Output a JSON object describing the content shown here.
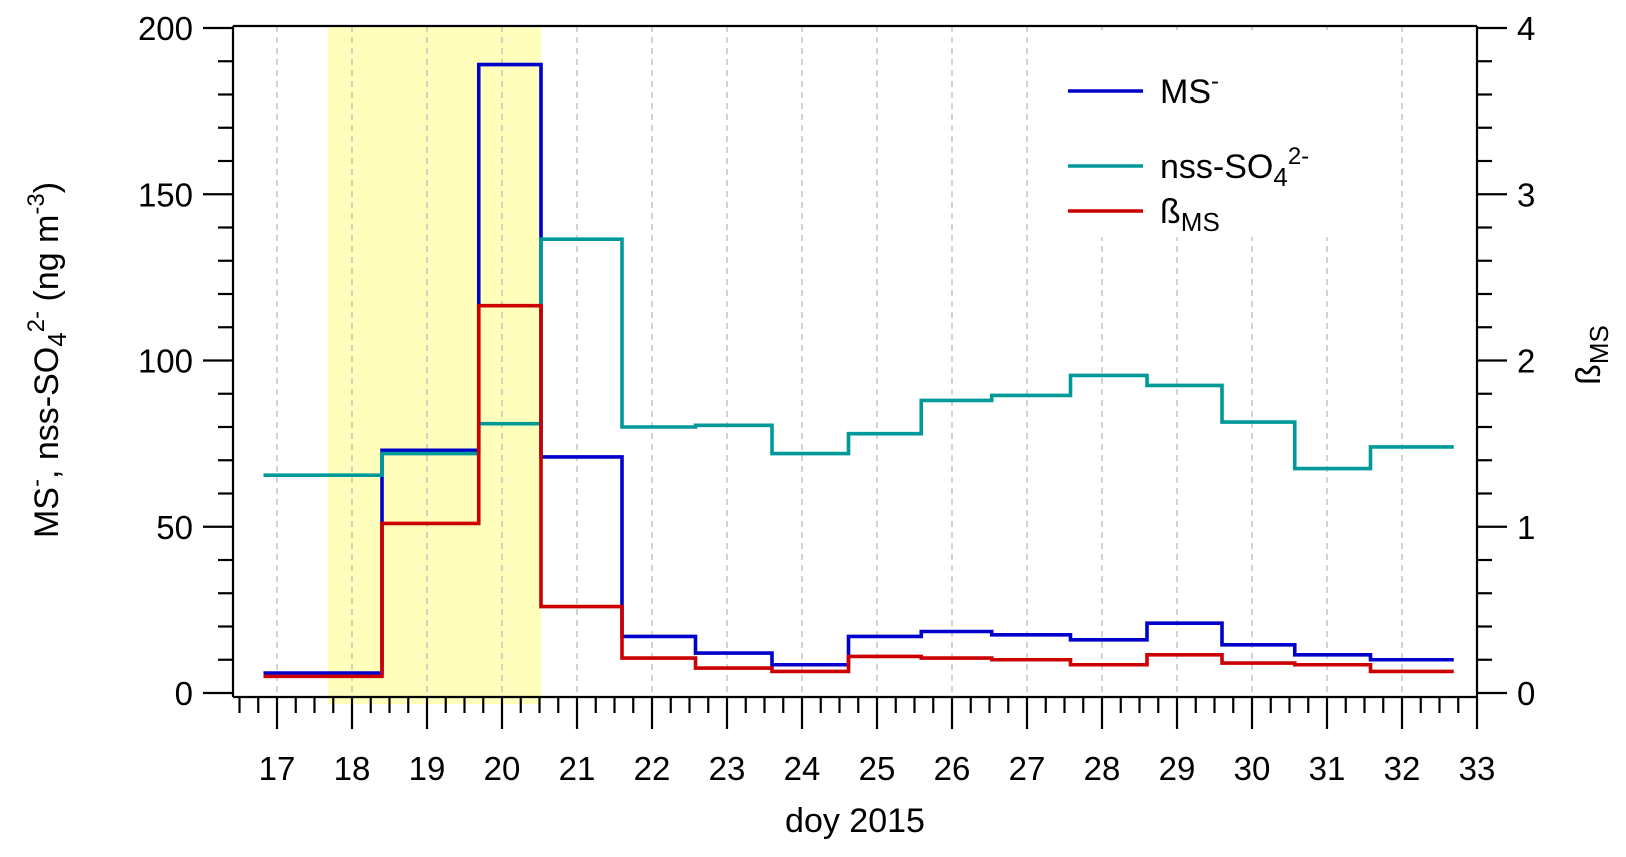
{
  "chart_data": {
    "type": "line",
    "step": true,
    "xlabel": "doy 2015",
    "xlim": [
      16.41,
      33
    ],
    "xticks": [
      17,
      18,
      19,
      20,
      21,
      22,
      23,
      24,
      25,
      26,
      27,
      28,
      29,
      30,
      31,
      32,
      33
    ],
    "ylim": [
      0,
      200
    ],
    "yticks": [
      0,
      50,
      100,
      150,
      200
    ],
    "y2lim": [
      0,
      4
    ],
    "y2ticks": [
      0,
      1,
      2,
      3,
      4
    ],
    "ylabel_parts": [
      {
        "t": "MS",
        "s": ""
      },
      {
        "t": "-",
        "s": "sup"
      },
      {
        "t": ", nss-SO",
        "s": ""
      },
      {
        "t": "4",
        "s": "sub"
      },
      {
        "t": "2-",
        "s": "sup"
      },
      {
        "t": "  (ng m",
        "s": ""
      },
      {
        "t": "-3",
        "s": "sup"
      },
      {
        "t": ")",
        "s": ""
      }
    ],
    "y2label_parts": [
      {
        "t": "ß",
        "s": ""
      },
      {
        "t": "MS",
        "s": "sub"
      }
    ],
    "grid": "vertical dashed at each day",
    "highlight": {
      "x_start": 17.68,
      "x_end": 20.52,
      "color": "#ffffbb"
    },
    "legend_position": "top-right",
    "edges": [
      16.82,
      18.4,
      19.69,
      20.52,
      21.6,
      22.58,
      23.6,
      24.62,
      25.59,
      26.53,
      27.58,
      28.6,
      29.6,
      30.57,
      31.58,
      32.69
    ],
    "series": [
      {
        "name": "MS-",
        "legend_parts": [
          {
            "t": "MS",
            "s": ""
          },
          {
            "t": "-",
            "s": "sup"
          }
        ],
        "axis": "left",
        "color": "#0000cc",
        "values": [
          6,
          73,
          189,
          71,
          17,
          12,
          8.5,
          17,
          18.5,
          17.5,
          16,
          21,
          14.5,
          11.5,
          10
        ]
      },
      {
        "name": "nss-SO42-",
        "legend_parts": [
          {
            "t": "nss-SO",
            "s": ""
          },
          {
            "t": "4",
            "s": "sub"
          },
          {
            "t": "2-",
            "s": "sup"
          }
        ],
        "axis": "left",
        "color": "#009999",
        "values": [
          65.5,
          72,
          81,
          136.5,
          80,
          80.5,
          72,
          78,
          88,
          89.5,
          95.5,
          92.5,
          81.5,
          67.5,
          74
        ]
      },
      {
        "name": "ßMS",
        "legend_parts": [
          {
            "t": "ß",
            "s": ""
          },
          {
            "t": "MS",
            "s": "sub"
          }
        ],
        "axis": "right",
        "color": "#cc0000",
        "values": [
          0.1,
          1.02,
          2.33,
          0.52,
          0.21,
          0.15,
          0.13,
          0.22,
          0.21,
          0.2,
          0.17,
          0.23,
          0.18,
          0.17,
          0.13
        ]
      }
    ]
  }
}
